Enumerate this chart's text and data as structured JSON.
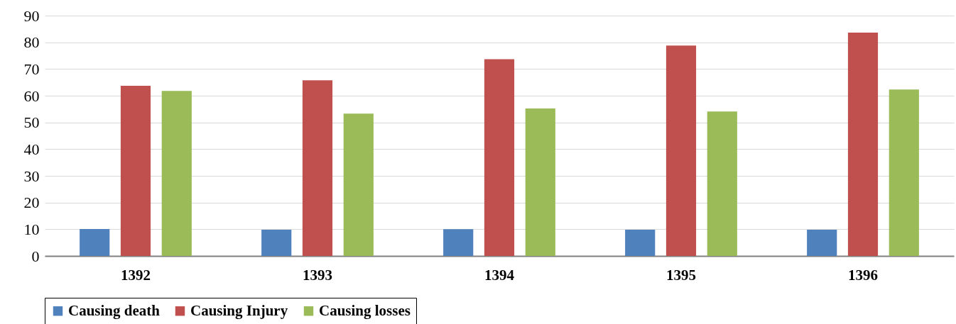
{
  "chart_data": {
    "type": "bar",
    "categories": [
      "1392",
      "1393",
      "1394",
      "1395",
      "1396"
    ],
    "series": [
      {
        "name": "Causing death",
        "color": "#4f81bd",
        "values": [
          10.1,
          9.8,
          10,
          9.8,
          9.8
        ]
      },
      {
        "name": "Causing Injury",
        "color": "#c0504d",
        "values": [
          63.7,
          65.8,
          73.7,
          78.8,
          83.6
        ]
      },
      {
        "name": "Causing losses",
        "color": "#9bbb59",
        "values": [
          61.8,
          53.3,
          55.2,
          54.1,
          62.3
        ]
      }
    ],
    "ylim": [
      0,
      90
    ],
    "yticks": [
      0,
      10,
      20,
      30,
      40,
      50,
      60,
      70,
      80,
      90
    ],
    "grid": "y",
    "legend": "bottom"
  }
}
